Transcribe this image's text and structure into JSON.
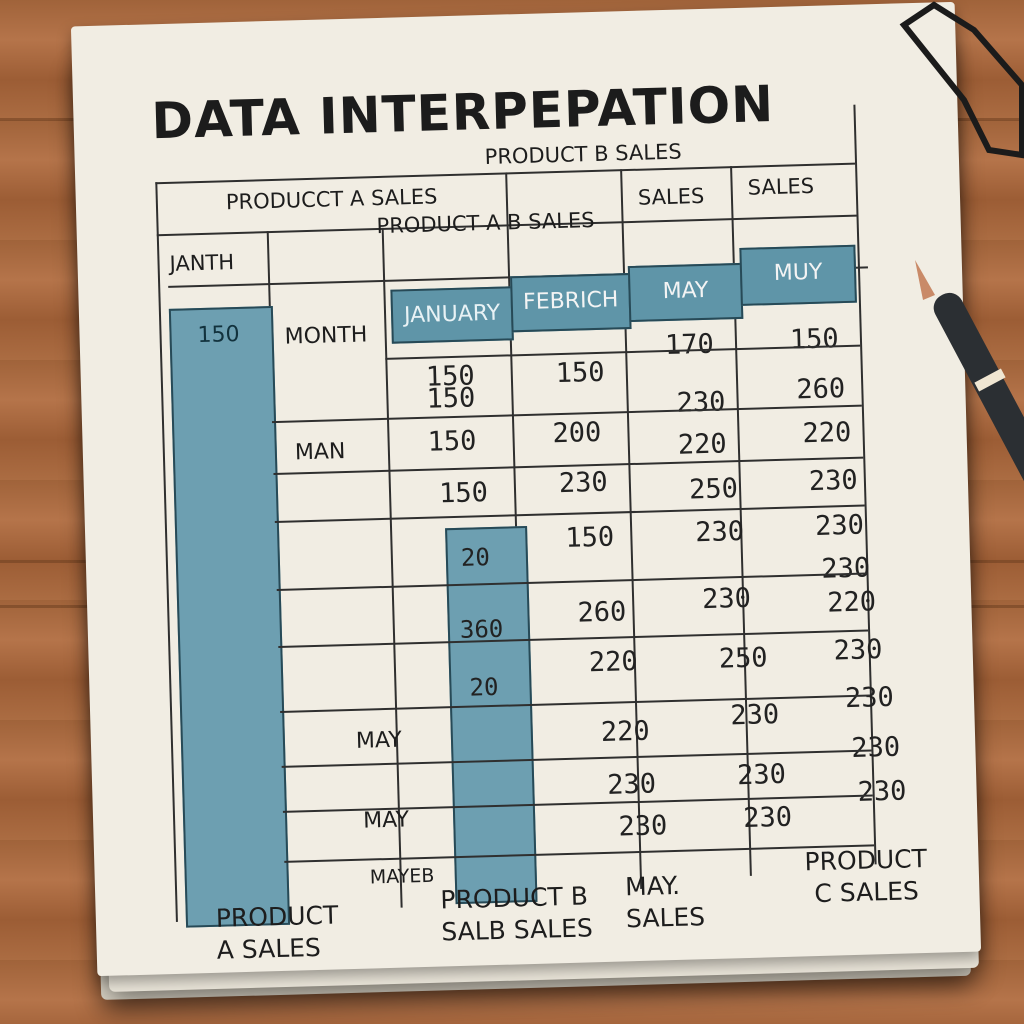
{
  "title": "DATA INTERPEPATION",
  "headers": {
    "top_row": [
      "PRODUCCT A SALES",
      "PRODUCT B SALES",
      "SALES",
      "SALES"
    ],
    "second_row": [
      "JANTH",
      "PRODUCT A B SALES"
    ],
    "blue_row": [
      "JANUARY",
      "FEBRICH",
      "MAY",
      "MUY"
    ],
    "left_col_top": "150",
    "month_label": "MONTH"
  },
  "month_column": [
    "MAN",
    "MAY",
    "MAY",
    "MAYEB"
  ],
  "col1": [
    "150\n150",
    "150",
    "150"
  ],
  "col1_blue": [
    "20",
    "360",
    "20"
  ],
  "col2": [
    "150",
    "200",
    "230",
    "150",
    "260",
    "220",
    "220",
    "230",
    "230"
  ],
  "col3": [
    "170",
    "230",
    "220",
    "250",
    "230",
    "230",
    "250",
    "230",
    "230",
    "230"
  ],
  "col4": [
    "150",
    "260",
    "220",
    "230",
    "230",
    "230",
    "220",
    "230",
    "230",
    "230",
    "230",
    "230"
  ],
  "footer": [
    "PRODUCT\nA SALES",
    "PRODUCT B\nSALB SALES",
    "MAY.\nSALES",
    "PRODUCT\nC SALES"
  ],
  "colors": {
    "teal": "#5f95a8",
    "paper": "#f1ede3",
    "wood": "#a0633a"
  }
}
